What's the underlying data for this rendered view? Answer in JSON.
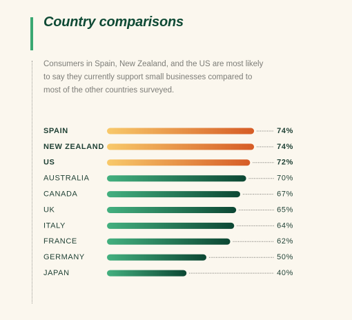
{
  "chart_data": {
    "type": "bar",
    "orientation": "horizontal",
    "title": "Country comparisons",
    "subtitle": "Consumers in Spain, New Zealand, and the US are most likely to say they currently support small businesses compared to most of the other countries surveyed.",
    "categories": [
      "SPAIN",
      "NEW ZEALAND",
      "US",
      "AUSTRALIA",
      "CANADA",
      "UK",
      "ITALY",
      "FRANCE",
      "GERMANY",
      "JAPAN"
    ],
    "values": [
      74,
      74,
      72,
      70,
      67,
      65,
      64,
      62,
      50,
      40
    ],
    "value_labels": [
      "74%",
      "74%",
      "72%",
      "70%",
      "67%",
      "65%",
      "64%",
      "62%",
      "50%",
      "40%"
    ],
    "highlight": [
      true,
      true,
      true,
      false,
      false,
      false,
      false,
      false,
      false,
      false
    ],
    "color": [
      "#43b07f",
      "#0c4733"
    ],
    "highlight_color": [
      "#f8c96a",
      "#d65c26"
    ]
  }
}
